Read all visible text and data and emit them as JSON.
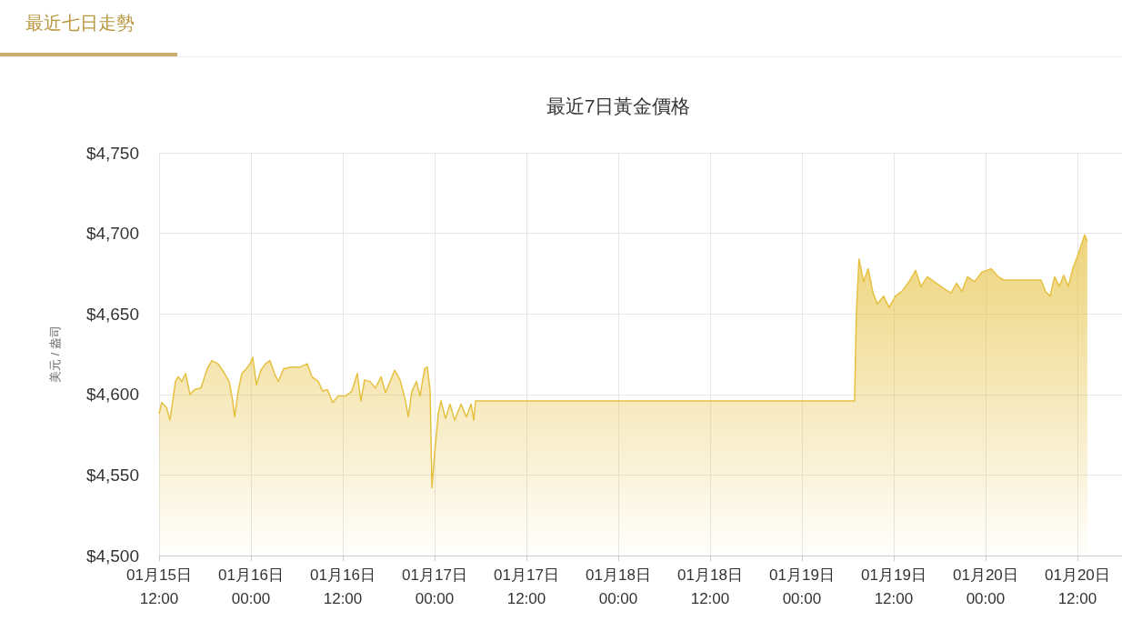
{
  "chart_data": {
    "type": "area",
    "title": "最近7日黃金價格",
    "ylabel": "美元 / 盎司",
    "annotations": [
      "最近七日走勢"
    ],
    "series": [
      {
        "color": "#e6c141",
        "x": [
          "--01-15T12:00",
          "--01-15T12:21",
          "--01-15T12:57",
          "--01-15T13:25",
          "--01-15T13:47",
          "--01-15T14:08",
          "--01-15T14:30",
          "--01-15T14:58",
          "--01-15T15:27",
          "--01-15T16:02",
          "--01-15T16:38",
          "--01-15T17:28",
          "--01-15T18:18",
          "--01-15T18:54",
          "--01-15T19:43",
          "--01-15T20:33",
          "--01-15T21:09",
          "--01-15T21:37",
          "--01-15T21:52",
          "--01-15T22:20",
          "--01-15T22:49",
          "--01-15T23:24",
          "--01-15T23:53",
          "--01-16T00:14",
          "--01-16T00:43",
          "--01-16T01:18",
          "--01-16T01:54",
          "--01-16T02:29",
          "--01-16T03:05",
          "--01-16T03:34",
          "--01-16T04:17",
          "--01-16T05:14",
          "--01-16T06:25",
          "--01-16T07:22",
          "--01-16T07:58",
          "--01-16T08:48",
          "--01-16T09:23",
          "--01-16T09:59",
          "--01-16T10:41",
          "--01-16T11:24",
          "--01-16T12:21",
          "--01-16T13:11",
          "--01-16T13:54",
          "--01-16T14:22",
          "--01-16T14:51",
          "--01-16T15:34",
          "--01-16T16:17",
          "--01-16T17:00",
          "--01-16T17:35",
          "--01-16T18:11",
          "--01-16T18:47",
          "--01-16T19:29",
          "--01-16T20:12",
          "--01-16T20:34",
          "--01-16T21:02",
          "--01-16T21:38",
          "--01-16T22:06",
          "--01-16T22:42",
          "--01-16T23:03",
          "--01-16T23:25",
          "--01-16T23:39",
          "--01-17T00:00",
          "--01-17T00:29",
          "--01-17T00:50",
          "--01-17T01:26",
          "--01-17T02:01",
          "--01-17T02:37",
          "--01-17T03:27",
          "--01-17T04:10",
          "--01-17T04:46",
          "--01-17T05:07",
          "--01-17T05:21",
          "--01-17T05:43",
          "--01-19T06:53",
          "--01-19T07:07",
          "--01-19T07:28",
          "--01-19T08:04",
          "--01-19T08:40",
          "--01-19T09:15",
          "--01-19T09:51",
          "--01-19T10:41",
          "--01-19T11:24",
          "--01-19T12:14",
          "--01-19T13:04",
          "--01-19T14:01",
          "--01-19T14:51",
          "--01-19T15:34",
          "--01-19T16:24",
          "--01-19T17:35",
          "--01-19T18:47",
          "--01-19T19:30",
          "--01-19T20:13",
          "--01-19T20:55",
          "--01-19T21:38",
          "--01-19T22:35",
          "--01-19T23:32",
          "--01-20T00:43",
          "--01-20T01:40",
          "--01-20T02:23",
          "--01-20T07:15",
          "--01-20T07:50",
          "--01-20T08:26",
          "--01-20T09:02",
          "--01-20T09:38",
          "--01-20T10:13",
          "--01-20T10:49",
          "--01-20T11:24",
          "--01-20T12:07",
          "--01-20T12:36",
          "--01-20T12:57",
          "--01-20T13:18"
        ],
        "values": [
          4588,
          4595,
          4592,
          4584,
          4596,
          4608,
          4611,
          4608,
          4613,
          4600,
          4603,
          4604,
          4616,
          4621,
          4619,
          4613,
          4608,
          4596,
          4586,
          4602,
          4613,
          4616,
          4619,
          4623,
          4606,
          4615,
          4619,
          4621,
          4613,
          4608,
          4616,
          4617,
          4617,
          4619,
          4611,
          4608,
          4602,
          4603,
          4595,
          4599,
          4599,
          4602,
          4613,
          4596,
          4609,
          4608,
          4604,
          4611,
          4601,
          4608,
          4615,
          4609,
          4596,
          4586,
          4602,
          4608,
          4599,
          4616,
          4617,
          4602,
          4542,
          4563,
          4588,
          4596,
          4585,
          4594,
          4584,
          4594,
          4586,
          4594,
          4584,
          4596,
          4596,
          4596,
          4650,
          4684,
          4670,
          4678,
          4664,
          4656,
          4661,
          4654,
          4661,
          4664,
          4670,
          4677,
          4667,
          4673,
          4669,
          4665,
          4663,
          4669,
          4664,
          4673,
          4670,
          4676,
          4678,
          4673,
          4671,
          4671,
          4664,
          4661,
          4673,
          4667,
          4674,
          4667,
          4678,
          4687,
          4694,
          4699,
          4695
        ]
      }
    ],
    "xlim": [
      "--01-15T12:00",
      "--01-20T17:50"
    ],
    "xticks": [
      {
        "value": "--01-15T12:00",
        "label": "01月15日\n12:00"
      },
      {
        "value": "--01-16T00:00",
        "label": "01月16日\n00:00"
      },
      {
        "value": "--01-16T12:00",
        "label": "01月16日\n12:00"
      },
      {
        "value": "--01-17T00:00",
        "label": "01月17日\n00:00"
      },
      {
        "value": "--01-17T12:00",
        "label": "01月17日\n12:00"
      },
      {
        "value": "--01-18T00:00",
        "label": "01月18日\n00:00"
      },
      {
        "value": "--01-18T12:00",
        "label": "01月18日\n12:00"
      },
      {
        "value": "--01-19T00:00",
        "label": "01月19日\n00:00"
      },
      {
        "value": "--01-19T12:00",
        "label": "01月19日\n12:00"
      },
      {
        "value": "--01-20T00:00",
        "label": "01月20日\n00:00"
      },
      {
        "value": "--01-20T12:00",
        "label": "01月20日\n12:00"
      }
    ],
    "ylim": [
      4500,
      4750
    ],
    "yticks": [
      {
        "value": 4500,
        "label": "$4,500"
      },
      {
        "value": 4550,
        "label": "$4,550"
      },
      {
        "value": 4600,
        "label": "$4,600"
      },
      {
        "value": 4650,
        "label": "$4,650"
      },
      {
        "value": 4700,
        "label": "$4,700"
      },
      {
        "value": 4750,
        "label": "$4,750"
      }
    ],
    "grid": true,
    "marker": "none",
    "line_style": "solid"
  }
}
